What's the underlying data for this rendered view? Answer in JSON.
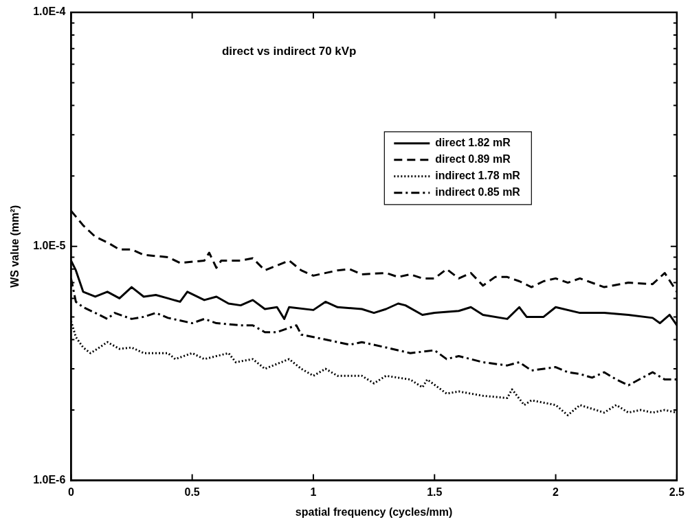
{
  "chart_data": {
    "type": "line",
    "title": "direct vs indirect 70 kVp",
    "xlabel": "spatial frequency (cycles/mm)",
    "ylabel": "WS value (mm²)",
    "log": "y",
    "grid": false,
    "legend": "top right",
    "marker": "none",
    "xlim": [
      0,
      2.5
    ],
    "xticks": [
      0,
      0.5,
      1,
      1.5,
      2,
      2.5
    ],
    "ylim": [
      1e-06,
      0.0001
    ],
    "yticks": [
      {
        "value": 1e-06,
        "label": "1.0E-6"
      },
      {
        "value": 2e-06,
        "label": null
      },
      {
        "value": 3e-06,
        "label": null
      },
      {
        "value": 4e-06,
        "label": null
      },
      {
        "value": 5e-06,
        "label": null
      },
      {
        "value": 6e-06,
        "label": null
      },
      {
        "value": 7e-06,
        "label": null
      },
      {
        "value": 8e-06,
        "label": null
      },
      {
        "value": 9e-06,
        "label": null
      },
      {
        "value": 1e-05,
        "label": "1.0E-5"
      },
      {
        "value": 2e-05,
        "label": null
      },
      {
        "value": 3e-05,
        "label": null
      },
      {
        "value": 4e-05,
        "label": null
      },
      {
        "value": 5e-05,
        "label": null
      },
      {
        "value": 6e-05,
        "label": null
      },
      {
        "value": 7e-05,
        "label": null
      },
      {
        "value": 8e-05,
        "label": null
      },
      {
        "value": 9e-05,
        "label": null
      },
      {
        "value": 0.0001,
        "label": "1.0E-4"
      }
    ],
    "series": [
      {
        "name": "direct 1.82 mR",
        "color": "#000000",
        "line_style": "solid",
        "x": [
          0,
          0.02,
          0.05,
          0.1,
          0.15,
          0.2,
          0.25,
          0.3,
          0.35,
          0.4,
          0.45,
          0.48,
          0.55,
          0.6,
          0.65,
          0.7,
          0.75,
          0.8,
          0.85,
          0.88,
          0.9,
          1.0,
          1.05,
          1.1,
          1.2,
          1.25,
          1.3,
          1.35,
          1.38,
          1.45,
          1.5,
          1.6,
          1.65,
          1.7,
          1.8,
          1.85,
          1.88,
          1.95,
          2.0,
          2.1,
          2.2,
          2.3,
          2.4,
          2.43,
          2.47,
          2.5
        ],
        "values": [
          8.7e-06,
          7.9e-06,
          6.4e-06,
          6.1e-06,
          6.4e-06,
          6e-06,
          6.7e-06,
          6.1e-06,
          6.2e-06,
          6e-06,
          5.8e-06,
          6.4e-06,
          5.9e-06,
          6.1e-06,
          5.7e-06,
          5.6e-06,
          5.9e-06,
          5.4e-06,
          5.5e-06,
          4.9e-06,
          5.5e-06,
          5.35e-06,
          5.8e-06,
          5.5e-06,
          5.4e-06,
          5.2e-06,
          5.4e-06,
          5.7e-06,
          5.6e-06,
          5.1e-06,
          5.2e-06,
          5.3e-06,
          5.5e-06,
          5.1e-06,
          4.9e-06,
          5.5e-06,
          5e-06,
          5e-06,
          5.5e-06,
          5.2e-06,
          5.2e-06,
          5.1e-06,
          4.95e-06,
          4.7e-06,
          5.1e-06,
          4.6e-06
        ]
      },
      {
        "name": "direct 0.89 mR",
        "color": "#000000",
        "line_style": "dashed",
        "x": [
          0,
          0.05,
          0.1,
          0.15,
          0.2,
          0.25,
          0.3,
          0.4,
          0.45,
          0.55,
          0.57,
          0.6,
          0.62,
          0.7,
          0.75,
          0.8,
          0.9,
          0.95,
          1.0,
          1.1,
          1.15,
          1.2,
          1.3,
          1.35,
          1.4,
          1.45,
          1.5,
          1.55,
          1.6,
          1.65,
          1.7,
          1.75,
          1.8,
          1.85,
          1.9,
          1.95,
          2.0,
          2.05,
          2.1,
          2.2,
          2.3,
          2.4,
          2.45,
          2.5
        ],
        "values": [
          1.42e-05,
          1.23e-05,
          1.1e-05,
          1.04e-05,
          9.7e-06,
          9.7e-06,
          9.2e-06,
          9e-06,
          8.5e-06,
          8.7e-06,
          9.4e-06,
          8.1e-06,
          8.7e-06,
          8.7e-06,
          8.9e-06,
          7.9e-06,
          8.7e-06,
          7.9e-06,
          7.5e-06,
          7.9e-06,
          8e-06,
          7.6e-06,
          7.7e-06,
          7.4e-06,
          7.6e-06,
          7.3e-06,
          7.3e-06,
          8e-06,
          7.3e-06,
          7.7e-06,
          6.8e-06,
          7.4e-06,
          7.4e-06,
          7.1e-06,
          6.7e-06,
          7.1e-06,
          7.3e-06,
          7e-06,
          7.3e-06,
          6.7e-06,
          7e-06,
          6.9e-06,
          7.7e-06,
          6.4e-06
        ]
      },
      {
        "name": "indirect 1.78 mR",
        "color": "#000000",
        "line_style": "dotted",
        "x": [
          0,
          0.02,
          0.05,
          0.08,
          0.1,
          0.15,
          0.2,
          0.25,
          0.3,
          0.4,
          0.43,
          0.5,
          0.55,
          0.65,
          0.68,
          0.75,
          0.8,
          0.9,
          0.95,
          1.0,
          1.05,
          1.1,
          1.2,
          1.25,
          1.3,
          1.4,
          1.45,
          1.47,
          1.55,
          1.6,
          1.7,
          1.8,
          1.82,
          1.87,
          1.9,
          2.0,
          2.05,
          2.1,
          2.2,
          2.25,
          2.3,
          2.35,
          2.4,
          2.45,
          2.5
        ],
        "values": [
          4.8e-06,
          4.1e-06,
          3.7e-06,
          3.5e-06,
          3.6e-06,
          3.9e-06,
          3.65e-06,
          3.7e-06,
          3.5e-06,
          3.5e-06,
          3.3e-06,
          3.5e-06,
          3.3e-06,
          3.5e-06,
          3.2e-06,
          3.3e-06,
          3e-06,
          3.3e-06,
          3e-06,
          2.8e-06,
          3e-06,
          2.8e-06,
          2.8e-06,
          2.6e-06,
          2.8e-06,
          2.7e-06,
          2.5e-06,
          2.7e-06,
          2.35e-06,
          2.4e-06,
          2.3e-06,
          2.25e-06,
          2.45e-06,
          2.1e-06,
          2.2e-06,
          2.1e-06,
          1.9e-06,
          2.1e-06,
          1.95e-06,
          2.1e-06,
          1.95e-06,
          2e-06,
          1.95e-06,
          2e-06,
          1.95e-06
        ]
      },
      {
        "name": "indirect 0.85 mR",
        "color": "#000000",
        "line_style": "dashdot",
        "x": [
          0,
          0.02,
          0.05,
          0.1,
          0.15,
          0.18,
          0.25,
          0.3,
          0.35,
          0.4,
          0.5,
          0.55,
          0.6,
          0.7,
          0.75,
          0.8,
          0.85,
          0.93,
          0.95,
          1.0,
          1.1,
          1.15,
          1.2,
          1.3,
          1.4,
          1.5,
          1.55,
          1.6,
          1.7,
          1.8,
          1.85,
          1.9,
          2.0,
          2.05,
          2.1,
          2.15,
          2.2,
          2.25,
          2.3,
          2.4,
          2.45,
          2.5
        ],
        "values": [
          7.3e-06,
          5.8e-06,
          5.5e-06,
          5.2e-06,
          4.9e-06,
          5.2e-06,
          4.9e-06,
          5e-06,
          5.2e-06,
          4.95e-06,
          4.7e-06,
          4.9e-06,
          4.7e-06,
          4.6e-06,
          4.6e-06,
          4.3e-06,
          4.3e-06,
          4.6e-06,
          4.2e-06,
          4.1e-06,
          3.9e-06,
          3.8e-06,
          3.9e-06,
          3.7e-06,
          3.5e-06,
          3.6e-06,
          3.3e-06,
          3.4e-06,
          3.2e-06,
          3.1e-06,
          3.2e-06,
          2.95e-06,
          3.05e-06,
          2.9e-06,
          2.85e-06,
          2.75e-06,
          2.9e-06,
          2.7e-06,
          2.55e-06,
          2.9e-06,
          2.7e-06,
          2.7e-06
        ]
      }
    ]
  }
}
